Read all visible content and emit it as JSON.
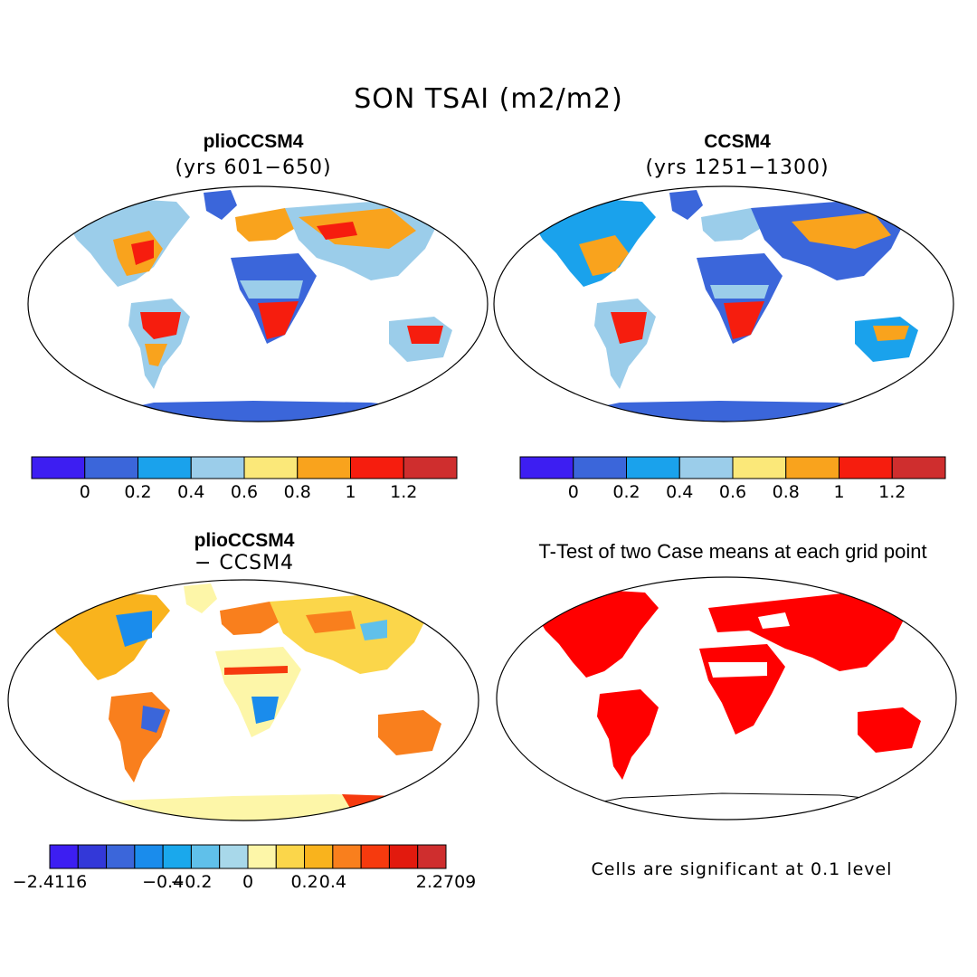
{
  "title": "SON TSAI (m2/m2)",
  "panels": [
    {
      "title": "plioCCSM4",
      "subtitle": "(yrs 601−650)"
    },
    {
      "title": "CCSM4",
      "subtitle": "(yrs 1251−1300)"
    },
    {
      "title": "plioCCSM4",
      "subtitle": "− CCSM4"
    },
    {
      "title": "T-Test of two Case means at each grid point",
      "subtitle": ""
    }
  ],
  "colorbar_abs": {
    "colors": [
      "#3d1ef2",
      "#3b66da",
      "#1aa2ec",
      "#9bcdea",
      "#fbe879",
      "#f9a31d",
      "#f61d0e",
      "#cf2e2e"
    ],
    "ticks": [
      "0",
      "0.2",
      "0.4",
      "0.6",
      "0.8",
      "1",
      "1.2"
    ]
  },
  "colorbar_diff": {
    "colors": [
      "#3d1ef2",
      "#3338d8",
      "#3b66da",
      "#1a8cec",
      "#1aa8ec",
      "#60c0ea",
      "#a8d8ea",
      "#fdf6a8",
      "#fbd64a",
      "#f9b31d",
      "#f97f1d",
      "#f63a0e",
      "#e21a0e",
      "#cf2e2e"
    ],
    "ticks": [
      "−2.4116",
      "−0.4",
      "−0.2",
      "0",
      "0.2",
      "0.4",
      "2.2709"
    ]
  },
  "ttest_note": "Cells are significant at 0.1 level",
  "colors": {
    "significant": "#ff0000",
    "outline": "#000000"
  }
}
